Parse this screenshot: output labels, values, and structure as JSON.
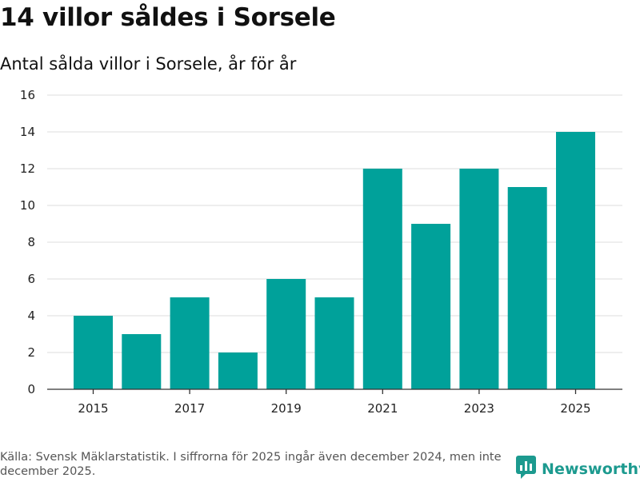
{
  "header": {
    "title": "14 villor såldes i Sorsele",
    "subtitle": "Antal sålda villor i Sorsele, år för år"
  },
  "chart_data": {
    "type": "bar",
    "title": "14 villor såldes i Sorsele",
    "subtitle": "Antal sålda villor i Sorsele, år för år",
    "xlabel": "",
    "ylabel": "",
    "categories": [
      "2015",
      "2016",
      "2017",
      "2018",
      "2019",
      "2020",
      "2021",
      "2022",
      "2023",
      "2024",
      "2025"
    ],
    "values": [
      4,
      3,
      5,
      2,
      6,
      5,
      12,
      9,
      12,
      11,
      14
    ],
    "x_tick_labels": [
      "2015",
      "2017",
      "2019",
      "2021",
      "2023",
      "2025"
    ],
    "y_ticks": [
      0,
      2,
      4,
      6,
      8,
      10,
      12,
      14,
      16
    ],
    "ylim": [
      0,
      16
    ],
    "grid": true,
    "bar_color": "#00a19a"
  },
  "footer": {
    "source": "Källa: Svensk Mäklarstatistik. I siffrorna för 2025 ingår även december 2024, men inte december 2025.",
    "brand": "Newsworthy",
    "brand_icon": "newsworthy-logo-icon",
    "brand_color": "#1c9a8f"
  }
}
